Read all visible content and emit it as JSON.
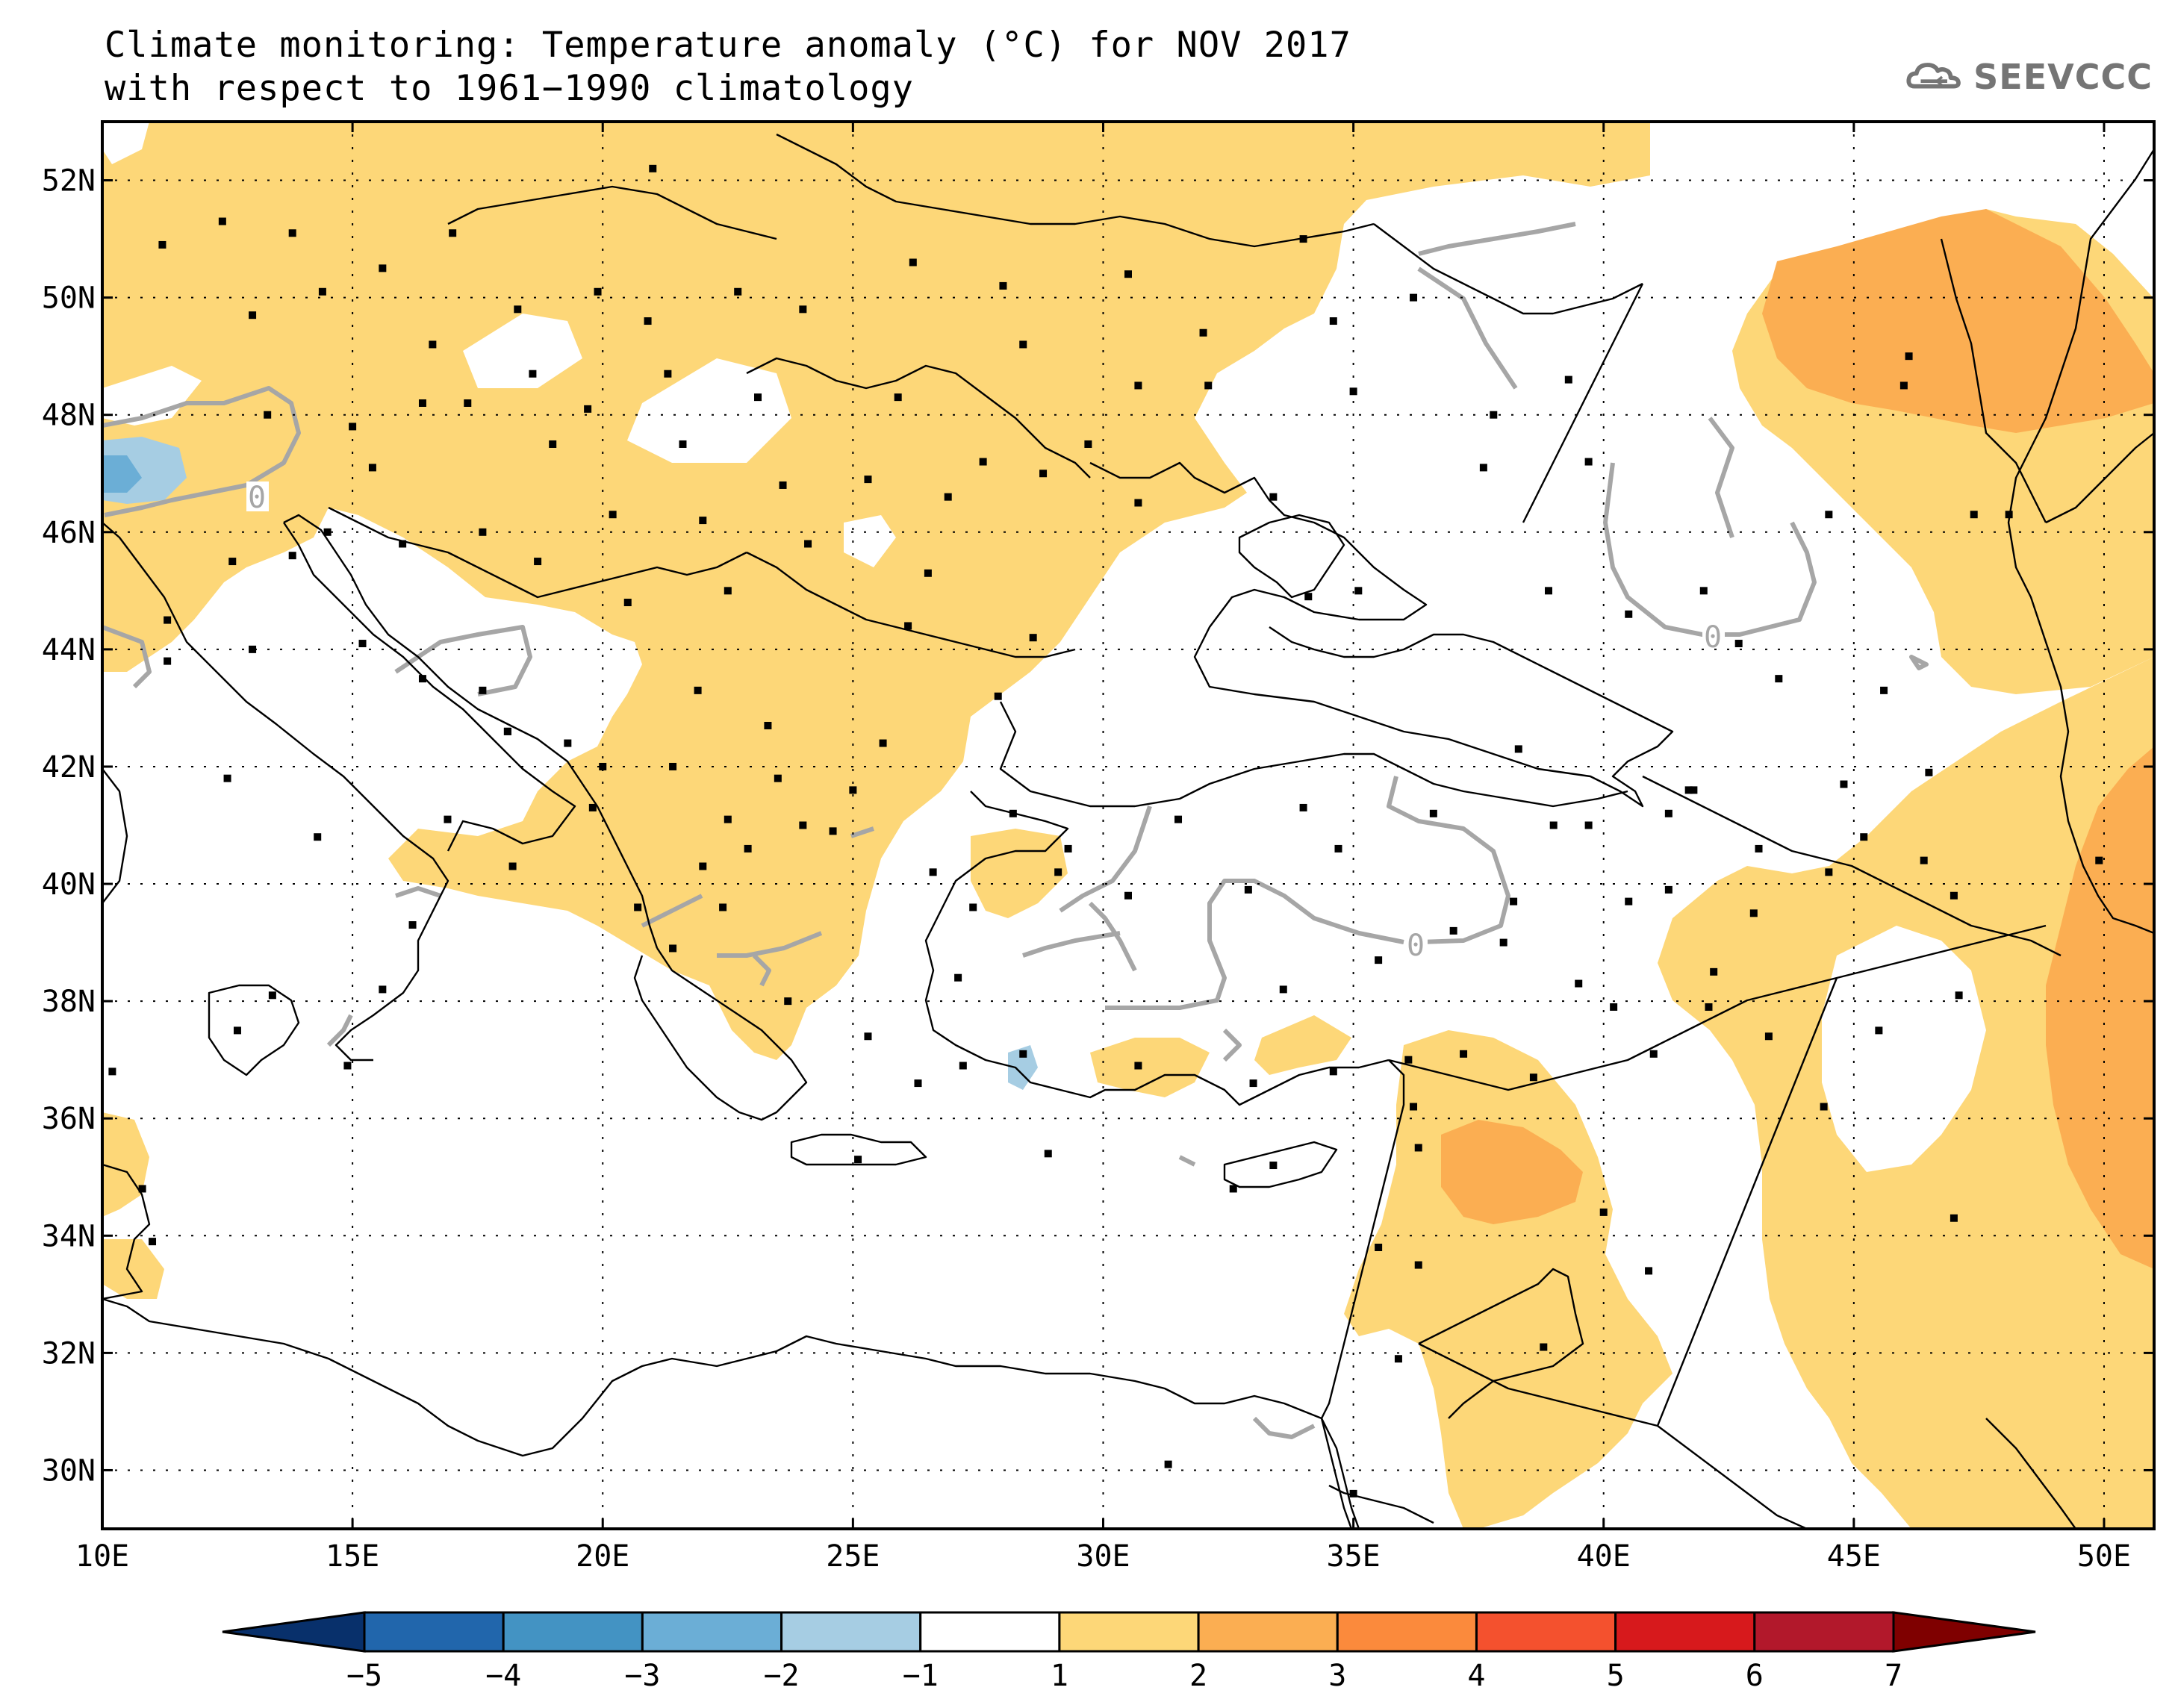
{
  "title": {
    "line1": "Climate monitoring: Temperature anomaly (°C) for NOV 2017",
    "line2": "with respect to 1961−1990 climatology"
  },
  "logo": {
    "text": "SEEVCCC",
    "icon": "cloud-icon"
  },
  "axes": {
    "lat_labels": [
      "52N",
      "50N",
      "48N",
      "46N",
      "44N",
      "42N",
      "40N",
      "38N",
      "36N",
      "34N",
      "32N",
      "30N"
    ],
    "lon_labels": [
      "10E",
      "15E",
      "20E",
      "25E",
      "30E",
      "35E",
      "40E",
      "45E",
      "50E"
    ]
  },
  "colorbar": {
    "labels": [
      "−5",
      "−4",
      "−3",
      "−2",
      "−1",
      "1",
      "2",
      "3",
      "4",
      "5",
      "6",
      "7"
    ],
    "colors": [
      "#08306b",
      "#2166ac",
      "#4393c3",
      "#6baed6",
      "#a6cde3",
      "#ffffff",
      "#fdd778",
      "#fbae52",
      "#fb8a3c",
      "#f4512e",
      "#d7191c",
      "#b2182b",
      "#7f0000"
    ]
  },
  "contour_label": "0",
  "colors": {
    "anomaly_1_2": "#fdd778",
    "anomaly_2_3": "#fbae52",
    "anomaly_neg_1_2": "#a6cde3",
    "anomaly_neg_2_3": "#6baed6",
    "zero_contour": "#a6a6a6",
    "station": "#000000"
  }
}
